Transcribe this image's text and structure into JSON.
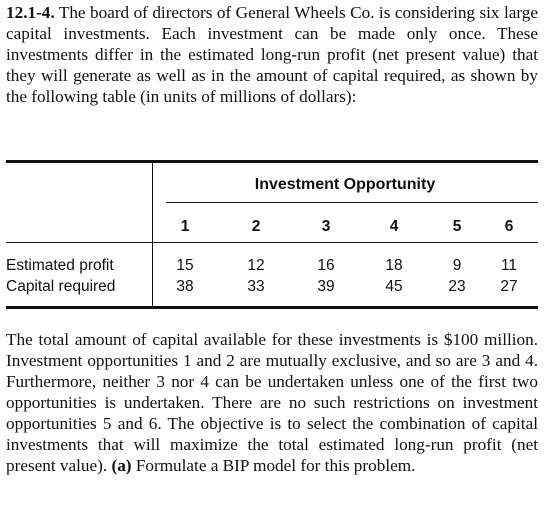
{
  "problem": {
    "number": "12.1-4.",
    "intro_text": "The board of directors of General Wheels Co. is considering six large capital investments. Each investment can be made only once. These investments differ in the estimated long-run profit (net present value) that they will generate as well as in the amount of capital required, as shown by the following table (in units of millions of dollars):"
  },
  "table": {
    "header": "Investment Opportunity",
    "columns": [
      "1",
      "2",
      "3",
      "4",
      "5",
      "6"
    ],
    "rows": [
      {
        "label": "Estimated profit",
        "values": [
          "15",
          "12",
          "16",
          "18",
          "9",
          "11"
        ]
      },
      {
        "label": "Capital required",
        "values": [
          "38",
          "33",
          "39",
          "45",
          "23",
          "27"
        ]
      }
    ]
  },
  "body": {
    "text": "The total amount of capital available for these investments is $100 million. Investment opportunities 1 and 2 are mutually exclusive, and so are 3 and 4. Furthermore, neither 3 nor 4 can be undertaken unless one of the first two opportunities is undertaken. There are no such restrictions on investment opportunities 5 and 6. The objective is to select the combination of capital investments that will maximize the total estimated long-run profit (net present value).",
    "part_label": "(a)",
    "part_text": "Formulate a BIP model for this problem."
  }
}
